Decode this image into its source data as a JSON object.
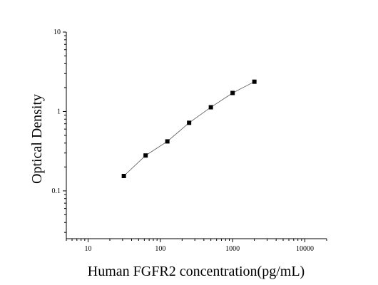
{
  "chart_data": {
    "type": "scatter",
    "xlabel": "Human FGFR2 concentration(pg/mL)",
    "ylabel": "Optical Density",
    "xlog": true,
    "ylog": true,
    "xlim": [
      5,
      20000
    ],
    "ylim": [
      0.025,
      10
    ],
    "xticks": [
      10,
      100,
      1000,
      10000
    ],
    "yticks": [
      0.1,
      1,
      10
    ],
    "line_color": "#555555",
    "color": "#000000",
    "series": [
      {
        "x": [
          31.25,
          62.5,
          125,
          250,
          500,
          1000,
          2000
        ],
        "values": [
          0.154,
          0.279,
          0.42,
          0.72,
          1.13,
          1.71,
          2.37
        ]
      }
    ]
  }
}
